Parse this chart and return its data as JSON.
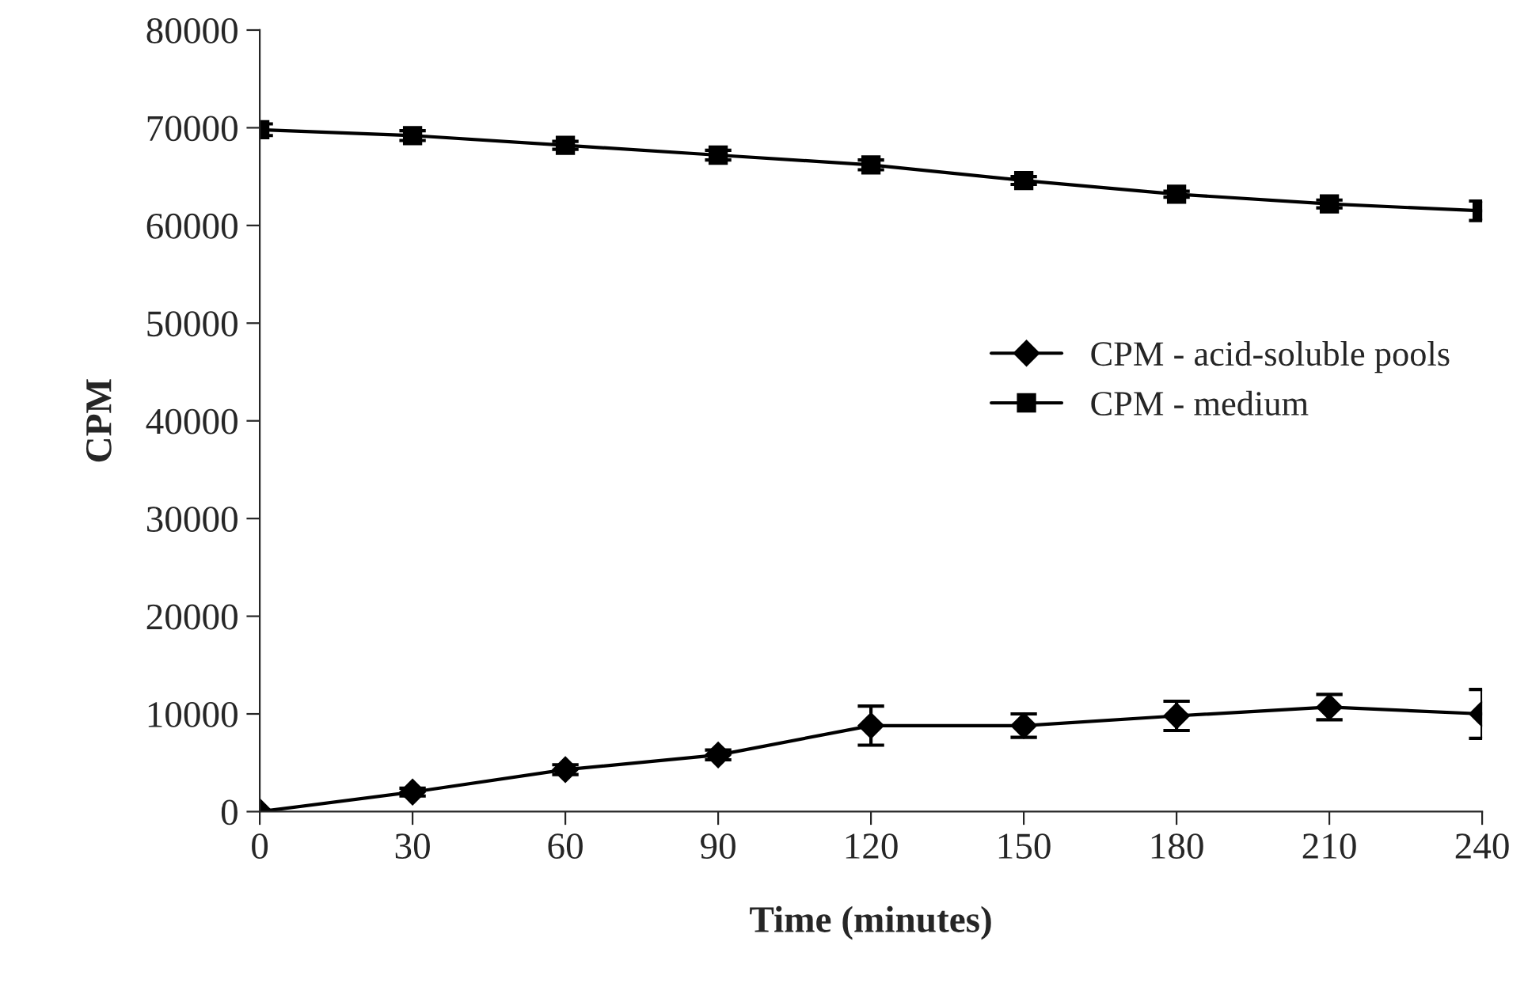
{
  "chart_data": {
    "type": "line",
    "xlabel": "Time (minutes)",
    "ylabel": "CPM",
    "x": [
      0,
      30,
      60,
      90,
      120,
      150,
      180,
      210,
      240
    ],
    "series": [
      {
        "name": "CPM - acid-soluble pools",
        "color": "#000000",
        "marker": "diamond",
        "values": [
          0,
          2000,
          4300,
          5800,
          8800,
          8800,
          9800,
          10700,
          10000
        ],
        "errors": [
          null,
          400,
          500,
          500,
          2000,
          1200,
          1500,
          1300,
          2500
        ]
      },
      {
        "name": "CPM - medium",
        "color": "#000000",
        "marker": "square",
        "values": [
          69800,
          69200,
          68200,
          67200,
          66200,
          64600,
          63200,
          62200,
          61500
        ],
        "errors": [
          600,
          500,
          400,
          500,
          500,
          400,
          300,
          400,
          1000
        ]
      }
    ],
    "xlim": [
      0,
      240
    ],
    "xticks": [
      0,
      30,
      60,
      90,
      120,
      150,
      180,
      210,
      240
    ],
    "ylim": [
      0,
      80000
    ],
    "yticks": [
      0,
      10000,
      20000,
      30000,
      40000,
      50000,
      60000,
      70000,
      80000
    ],
    "grid": false,
    "legend": "right",
    "line_style": "solid"
  }
}
